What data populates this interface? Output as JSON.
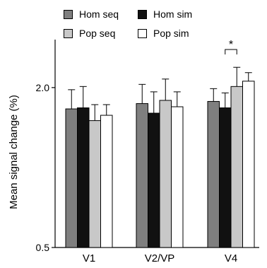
{
  "chart_data": {
    "type": "bar",
    "categories": [
      "V1",
      "V2/VP",
      "V4"
    ],
    "series": [
      {
        "name": "Hom seq",
        "values": [
          1.8,
          1.85,
          1.87
        ],
        "errors": [
          0.18,
          0.18,
          0.12
        ],
        "color": "#7f7f7f"
      },
      {
        "name": "Hom sim",
        "values": [
          1.81,
          1.76,
          1.81
        ],
        "errors": [
          0.2,
          0.2,
          0.14
        ],
        "color": "#111111"
      },
      {
        "name": "Pop seq",
        "values": [
          1.69,
          1.88,
          2.01
        ],
        "errors": [
          0.15,
          0.2,
          0.18
        ],
        "color": "#c8c8c8"
      },
      {
        "name": "Pop sim",
        "values": [
          1.74,
          1.82,
          2.06
        ],
        "errors": [
          0.1,
          0.14,
          0.08
        ],
        "color": "#ffffff"
      }
    ],
    "xlabel": "",
    "ylabel": "Mean signal change (%)",
    "ylim": [
      0.5,
      2.45
    ],
    "yticks": [
      0.5,
      2.0
    ],
    "ytick_labels": [
      "0.5",
      "2.0"
    ],
    "legend_position": "top",
    "annotations": [
      {
        "text": "*",
        "category": "V4",
        "between": [
          "Hom sim",
          "Pop seq"
        ]
      }
    ]
  }
}
